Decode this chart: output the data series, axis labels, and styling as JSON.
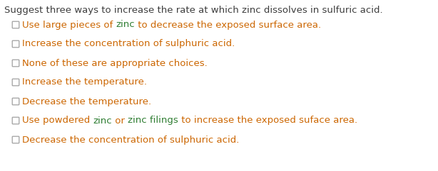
{
  "background_color": "#ffffff",
  "title_color": "#3d3d3d",
  "title_text": "Suggest three ways to increase the rate at which zinc dissolves in sulfuric acid.",
  "title_fontsize": 9.5,
  "option_fontsize": 9.5,
  "checkbox_edge_color": "#a0a0a0",
  "options_segments": [
    [
      {
        "text": "Use large pieces of ",
        "color": "#cc6600"
      },
      {
        "text": "zinc",
        "color": "#2e7d32"
      },
      {
        "text": " to decrease the exposed surface area.",
        "color": "#cc6600"
      }
    ],
    [
      {
        "text": "Increase the concentration of sulphuric acid.",
        "color": "#cc6600"
      }
    ],
    [
      {
        "text": "None of these are appropriate choices.",
        "color": "#cc6600"
      }
    ],
    [
      {
        "text": "Increase the temperature.",
        "color": "#cc6600"
      }
    ],
    [
      {
        "text": "Decrease the temperature.",
        "color": "#cc6600"
      }
    ],
    [
      {
        "text": "Use powdered ",
        "color": "#cc6600"
      },
      {
        "text": "zinc",
        "color": "#2e7d32"
      },
      {
        "text": " or ",
        "color": "#cc6600"
      },
      {
        "text": "zinc filings",
        "color": "#2e7d32"
      },
      {
        "text": " to increase the exposed suface area.",
        "color": "#cc6600"
      }
    ],
    [
      {
        "text": "Decrease the concentration of sulphuric acid.",
        "color": "#cc6600"
      }
    ]
  ],
  "fig_width": 6.14,
  "fig_height": 2.41,
  "dpi": 100
}
